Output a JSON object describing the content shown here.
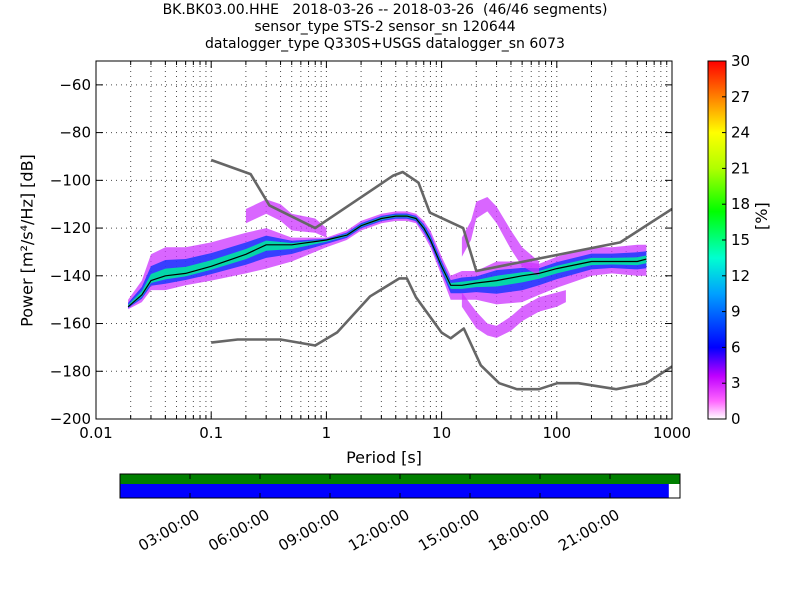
{
  "chart_data": {
    "type": "heatmap",
    "title_lines": [
      "BK.BK03.00.HHE   2018-03-26 -- 2018-03-26  (46/46 segments)",
      "sensor_type STS-2 sensor_sn 120644",
      "datalogger_type Q330S+USGS datalogger_sn 6073"
    ],
    "xlabel": "Period [s]",
    "ylabel": "Power [m²/s⁴/Hz] [dB]",
    "x_scale": "log",
    "xlim": [
      0.01,
      1000
    ],
    "ylim": [
      -200,
      -50
    ],
    "x_ticks": [
      0.01,
      0.1,
      1,
      10,
      100,
      1000
    ],
    "x_tick_labels": [
      "0.01",
      "0.1",
      "1",
      "10",
      "100",
      "1000"
    ],
    "y_ticks": [
      -200,
      -180,
      -160,
      -140,
      -120,
      -100,
      -80,
      -60
    ],
    "y_tick_labels": [
      "−200",
      "−180",
      "−160",
      "−140",
      "−120",
      "−100",
      "−80",
      "−60"
    ],
    "colorbar": {
      "label": "[%]",
      "range": [
        0,
        30
      ],
      "ticks": [
        0,
        3,
        6,
        9,
        12,
        15,
        18,
        21,
        24,
        27,
        30
      ],
      "tick_labels": [
        "0",
        "3",
        "6",
        "9",
        "12",
        "15",
        "18",
        "21",
        "24",
        "27",
        "30"
      ]
    },
    "series": [
      {
        "kind": "high_noise_model",
        "color": "#666666",
        "x": [
          0.1,
          0.22,
          0.32,
          0.8,
          3.8,
          4.6,
          6.3,
          7.9,
          15.4,
          20,
          354.8,
          1000
        ],
        "y": [
          -91.5,
          -97.4,
          -110.5,
          -120,
          -98,
          -96.5,
          -101,
          -113.5,
          -120,
          -138,
          -126,
          -112
        ]
      },
      {
        "kind": "low_noise_model",
        "color": "#666666",
        "x": [
          0.1,
          0.17,
          0.4,
          0.8,
          1.24,
          2.4,
          4.3,
          5,
          6,
          10,
          12,
          15.6,
          21.9,
          31.6,
          45,
          70,
          101,
          154,
          328,
          600,
          1000
        ],
        "y": [
          -168,
          -166.7,
          -166.7,
          -169.2,
          -163.7,
          -148.6,
          -141.1,
          -141.1,
          -149,
          -163.8,
          -166.2,
          -162.1,
          -177.5,
          -185,
          -187.5,
          -187.5,
          -185,
          -185,
          -187.5,
          -185,
          -178
        ]
      },
      {
        "kind": "median",
        "color": "#000000",
        "x": [
          0.019,
          0.025,
          0.03,
          0.04,
          0.06,
          0.1,
          0.2,
          0.3,
          0.5,
          1,
          1.5,
          2,
          3,
          4,
          5,
          6,
          7,
          8,
          10,
          12,
          15,
          20,
          30,
          50,
          70,
          100,
          200,
          300,
          500,
          600
        ],
        "y": [
          -153,
          -148,
          -142,
          -140,
          -139,
          -136,
          -131,
          -127,
          -127,
          -125,
          -123,
          -119,
          -116,
          -115,
          -115,
          -116,
          -120,
          -125,
          -136,
          -144,
          -144,
          -143,
          -142,
          -140,
          -139,
          -137,
          -134,
          -134,
          -134,
          -133
        ]
      }
    ],
    "density_bands": [
      {
        "x": [
          0.019,
          0.025,
          0.03,
          0.04,
          0.06,
          0.1,
          0.2,
          0.3,
          0.5,
          1,
          1.5,
          2,
          3,
          4,
          5,
          6,
          7,
          8,
          10,
          12,
          15,
          20,
          30,
          50,
          70,
          100,
          200,
          300,
          500,
          600
        ],
        "center": [
          -153,
          -148,
          -142,
          -140,
          -139,
          -136,
          -131,
          -127,
          -127,
          -125,
          -123,
          -119,
          -116,
          -115,
          -115,
          -116,
          -120,
          -125,
          -136,
          -144,
          -144,
          -143,
          -142,
          -140,
          -139,
          -137,
          -134,
          -134,
          -134,
          -133
        ],
        "lower": [
          -154,
          -151,
          -146,
          -146,
          -144,
          -142,
          -139,
          -137,
          -134,
          -128,
          -125,
          -121,
          -118,
          -117,
          -117,
          -118,
          -123,
          -128,
          -140,
          -150,
          -150,
          -150,
          -152,
          -151,
          -148,
          -145,
          -140,
          -139,
          -140,
          -140
        ],
        "upper": [
          -150,
          -142,
          -131,
          -128,
          -128,
          -126,
          -122,
          -120,
          -124,
          -124,
          -121,
          -117,
          -114,
          -113,
          -113,
          -114,
          -117,
          -121,
          -132,
          -140,
          -138,
          -138,
          -134,
          -134,
          -135,
          -132,
          -128,
          -128,
          -127,
          -127
        ]
      },
      {
        "x": [
          0.2,
          0.3,
          0.4,
          0.5,
          0.8,
          1
        ],
        "center": [
          -115,
          -110,
          -113,
          -117,
          -119,
          -122
        ],
        "lower": [
          -118,
          -114,
          -117,
          -121,
          -122,
          -124
        ],
        "upper": [
          -112,
          -108,
          -110,
          -114,
          -116,
          -120
        ]
      },
      {
        "x": [
          15,
          18,
          20,
          25,
          30,
          40,
          50,
          70
        ],
        "center": [
          -128,
          -121,
          -112,
          -109,
          -114,
          -125,
          -132,
          -137
        ],
        "lower": [
          -132,
          -125,
          -116,
          -113,
          -118,
          -129,
          -136,
          -140
        ],
        "upper": [
          -124,
          -117,
          -109,
          -107,
          -111,
          -121,
          -128,
          -134
        ]
      },
      {
        "x": [
          15,
          20,
          25,
          30,
          40,
          50,
          70,
          100,
          120
        ],
        "center": [
          -150,
          -158,
          -162,
          -163,
          -160,
          -156,
          -152,
          -150,
          -149
        ],
        "lower": [
          -153,
          -162,
          -165,
          -166,
          -163,
          -159,
          -155,
          -153,
          -151
        ],
        "upper": [
          -147,
          -155,
          -160,
          -161,
          -157,
          -153,
          -149,
          -147,
          -146
        ]
      }
    ],
    "timeline": {
      "tick_labels": [
        "03:00:00",
        "06:00:00",
        "09:00:00",
        "12:00:00",
        "15:00:00",
        "18:00:00",
        "21:00:00"
      ],
      "data_bar_color": "#007f00",
      "coverage_bar_color": "#0000ff",
      "coverage_fraction": 0.98
    }
  }
}
